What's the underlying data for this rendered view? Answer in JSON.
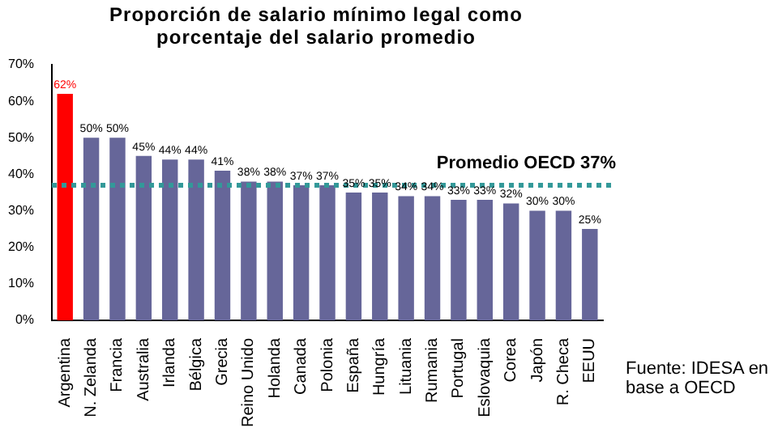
{
  "chart_data": {
    "type": "bar",
    "title": "Proporción de salario mínimo legal como porcentaje del salario promedio",
    "categories": [
      "Argentina",
      "N. Zelanda",
      "Francia",
      "Australia",
      "Irlanda",
      "Bélgica",
      "Grecia",
      "Reino Unido",
      "Holanda",
      "Canada",
      "Polonia",
      "España",
      "Hungría",
      "Lituania",
      "Rumania",
      "Portugal",
      "Eslovaquia",
      "Corea",
      "Japón",
      "R. Checa",
      "EEUU"
    ],
    "values": [
      62,
      50,
      50,
      45,
      44,
      44,
      41,
      38,
      38,
      37,
      37,
      35,
      35,
      34,
      34,
      33,
      33,
      32,
      30,
      30,
      25
    ],
    "colors": [
      "#ff0000",
      "#666699",
      "#666699",
      "#666699",
      "#666699",
      "#666699",
      "#666699",
      "#666699",
      "#666699",
      "#666699",
      "#666699",
      "#666699",
      "#666699",
      "#666699",
      "#666699",
      "#666699",
      "#666699",
      "#666699",
      "#666699",
      "#666699",
      "#666699"
    ],
    "ylim": [
      0,
      70
    ],
    "yticks": [
      {
        "value": 0,
        "label": "0%"
      },
      {
        "value": 10,
        "label": "10%"
      },
      {
        "value": 20,
        "label": "20%"
      },
      {
        "value": 30,
        "label": "30%"
      },
      {
        "value": 40,
        "label": "40%"
      },
      {
        "value": 50,
        "label": "50%"
      },
      {
        "value": 60,
        "label": "60%"
      },
      {
        "value": 70,
        "label": "70%"
      }
    ],
    "value_labels": [
      "62%",
      "50%",
      "50%",
      "45%",
      "44%",
      "44%",
      "41%",
      "38%",
      "38%",
      "37%",
      "37%",
      "35%",
      "35%",
      "34%",
      "34%",
      "33%",
      "33%",
      "32%",
      "30%",
      "30%",
      "25%"
    ],
    "grid": false,
    "legend": false,
    "ref_lines": [
      {
        "axis": "y",
        "value": 37,
        "label": "Promedio OECD 37%",
        "color": "#339999",
        "line_style": "dotted"
      }
    ],
    "annotations": [
      "Fuente: IDESA en base a OECD"
    ]
  }
}
